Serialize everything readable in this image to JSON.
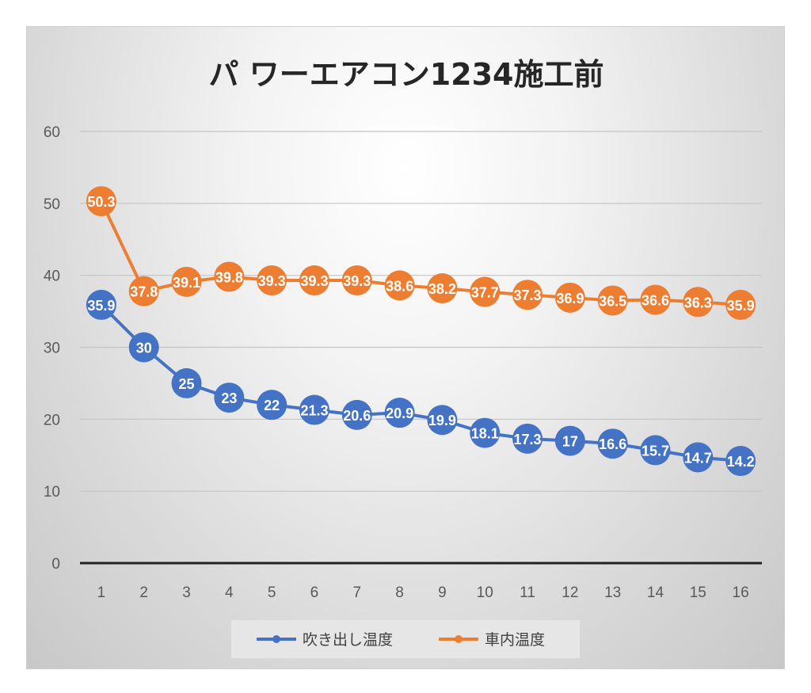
{
  "chart_data": {
    "type": "line",
    "title": "パ ワーエアコン1234施工前",
    "xlabel": "",
    "ylabel": "",
    "categories": [
      "1",
      "2",
      "3",
      "4",
      "5",
      "6",
      "7",
      "8",
      "9",
      "10",
      "11",
      "12",
      "13",
      "14",
      "15",
      "16"
    ],
    "ylim": [
      0,
      60
    ],
    "yticks": [
      "0",
      "10",
      "20",
      "30",
      "40",
      "50",
      "60"
    ],
    "grid": true,
    "legend_position": "bottom",
    "series": [
      {
        "name": "吹き出し温度",
        "color": "#4472c4",
        "values": [
          35.9,
          30,
          25,
          23,
          22,
          21.3,
          20.6,
          20.9,
          19.9,
          18.1,
          17.3,
          17,
          16.6,
          15.7,
          14.7,
          14.2
        ],
        "labels": [
          "35.9",
          "30",
          "25",
          "23",
          "22",
          "21.3",
          "20.6",
          "20.9",
          "19.9",
          "18.1",
          "17.3",
          "17",
          "16.6",
          "15.7",
          "14.7",
          "14.2"
        ]
      },
      {
        "name": "車内温度",
        "color": "#ed7d31",
        "values": [
          50.3,
          37.8,
          39.1,
          39.8,
          39.3,
          39.3,
          39.3,
          38.6,
          38.2,
          37.7,
          37.3,
          36.9,
          36.5,
          36.6,
          36.3,
          35.9
        ],
        "labels": [
          "50.3",
          "37.8",
          "39.1",
          "39.8",
          "39.3",
          "39.3",
          "39.3",
          "38.6",
          "38.2",
          "37.7",
          "37.3",
          "36.9",
          "36.5",
          "36.6",
          "36.3",
          "35.9"
        ]
      }
    ]
  }
}
